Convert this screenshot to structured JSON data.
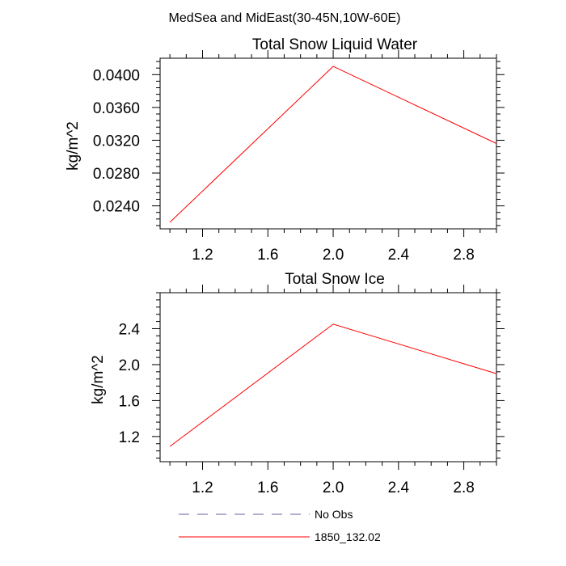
{
  "suptitle": "MedSea and MidEast(30-45N,10W-60E)",
  "chart_data": [
    {
      "type": "line",
      "title": "Total Snow Liquid Water",
      "ylabel": "kg/m^2",
      "xlabel": "",
      "xlim": [
        0.94,
        3.0
      ],
      "ylim": [
        0.0212,
        0.042
      ],
      "x_ticks": [
        1.2,
        1.6,
        2.0,
        2.4,
        2.8
      ],
      "x_tick_labels": [
        "1.2",
        "1.6",
        "2.0",
        "2.4",
        "2.8"
      ],
      "y_ticks": [
        0.024,
        0.028,
        0.032,
        0.036,
        0.04
      ],
      "y_tick_labels": [
        "0.0240",
        "0.0280",
        "0.0320",
        "0.0360",
        "0.0400"
      ],
      "series": [
        {
          "name": "1850_132.02",
          "color": "#ff0000",
          "x": [
            1.0,
            2.0,
            3.0
          ],
          "y": [
            0.022,
            0.041,
            0.0316
          ]
        }
      ]
    },
    {
      "type": "line",
      "title": "Total Snow Ice",
      "ylabel": "kg/m^2",
      "xlabel": "",
      "xlim": [
        0.94,
        3.0
      ],
      "ylim": [
        0.92,
        2.8
      ],
      "x_ticks": [
        1.2,
        1.6,
        2.0,
        2.4,
        2.8
      ],
      "x_tick_labels": [
        "1.2",
        "1.6",
        "2.0",
        "2.4",
        "2.8"
      ],
      "y_ticks": [
        1.2,
        1.6,
        2.0,
        2.4
      ],
      "y_tick_labels": [
        "1.2",
        "1.6",
        "2.0",
        "2.4"
      ],
      "series": [
        {
          "name": "1850_132.02",
          "color": "#ff0000",
          "x": [
            1.0,
            2.0,
            3.0
          ],
          "y": [
            1.09,
            2.45,
            1.9
          ]
        }
      ]
    }
  ],
  "legend": [
    {
      "label": "No Obs",
      "color": "#6464a0",
      "dashed": true
    },
    {
      "label": "1850_132.02",
      "color": "#ff0000",
      "dashed": false
    }
  ]
}
